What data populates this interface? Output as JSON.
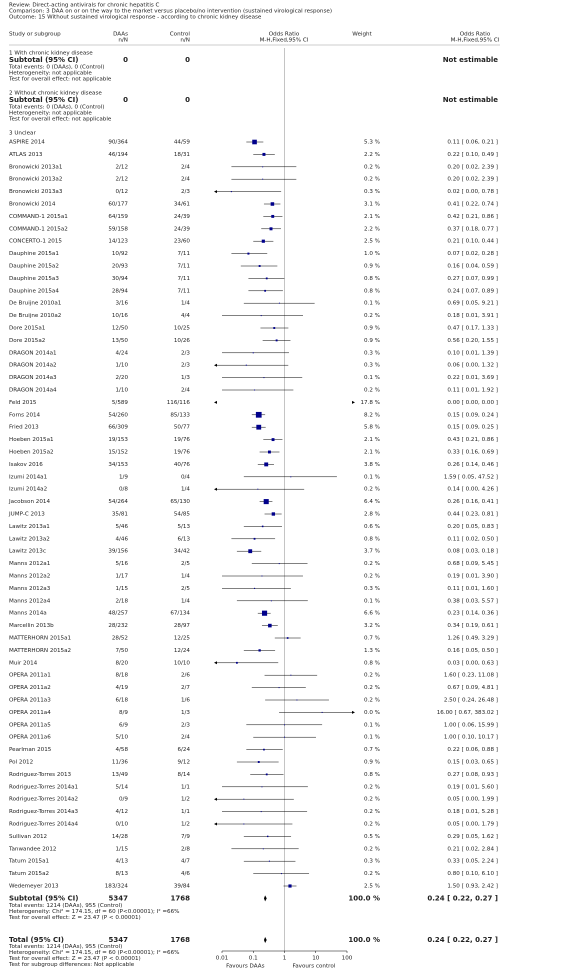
{
  "header": {
    "lines": [
      "Review:  Direct-acting antivirals for chronic hepatitis C",
      "Comparison:  3 DAA on or on the way to the market versus placebo/no intervention (sustained virological response)",
      "Outcome:  15 Without sustained virological response - according to chronic kidney disease"
    ]
  },
  "columns": {
    "study": "Study or subgroup",
    "daa": "DAAs",
    "daa_unit": "n/N",
    "ctl": "Control",
    "ctl_unit": "n/N",
    "plot": "Odds Ratio",
    "plot_method": "M-H,Fixed,95% CI",
    "weight": "Weight",
    "ci": "Odds Ratio",
    "ci_method": "M-H,Fixed,95% CI"
  },
  "subgroups": [
    {
      "title": "1 With chronic kidney disease",
      "subtotal": {
        "label": "Subtotal (95% CI)",
        "daa": 0,
        "ctl": 0,
        "ci": "Not estimable"
      },
      "notes": [
        "Total events: 0 (DAAs), 0 (Control)",
        "Heterogeneity: not applicable",
        "Test for overall effect: not applicable"
      ]
    },
    {
      "title": "2 Without chronic kidney disease",
      "subtotal": {
        "label": "Subtotal (95% CI)",
        "daa": 0,
        "ctl": 0,
        "ci": "Not estimable"
      },
      "notes": [
        "Total events: 0 (DAAs), 0 (Control)",
        "Heterogeneity: not applicable",
        "Test for overall effect: not applicable"
      ]
    },
    {
      "title": "3 Unclear",
      "studies": [
        {
          "study": "ASPIRE 2014",
          "daa": "90/364",
          "ctl": "44/59",
          "w": 5.3,
          "wl": "5.3 %",
          "or": 0.11,
          "lo": 0.06,
          "hi": 0.21,
          "ci": "0.11 [ 0.06, 0.21 ]"
        },
        {
          "study": "ATLAS 2013",
          "daa": "46/194",
          "ctl": "18/31",
          "w": 2.2,
          "wl": "2.2 %",
          "or": 0.22,
          "lo": 0.1,
          "hi": 0.49,
          "ci": "0.22 [ 0.10, 0.49 ]"
        },
        {
          "study": "Bronowicki 2013a1",
          "daa": "2/12",
          "ctl": "2/4",
          "w": 0.2,
          "wl": "0.2 %",
          "or": 0.2,
          "lo": 0.02,
          "hi": 2.39,
          "ci": "0.20 [ 0.02, 2.39 ]"
        },
        {
          "study": "Bronowicki 2013a2",
          "daa": "2/12",
          "ctl": "2/4",
          "w": 0.2,
          "wl": "0.2 %",
          "or": 0.2,
          "lo": 0.02,
          "hi": 2.39,
          "ci": "0.20 [ 0.02, 2.39 ]"
        },
        {
          "study": "Bronowicki 2013a3",
          "daa": "0/12",
          "ctl": "2/3",
          "w": 0.3,
          "wl": "0.3 %",
          "or": 0.02,
          "lo": 0.0,
          "hi": 0.78,
          "ci": "0.02 [ 0.00, 0.78 ]"
        },
        {
          "study": "Bronowicki 2014",
          "daa": "60/177",
          "ctl": "34/61",
          "w": 3.1,
          "wl": "3.1 %",
          "or": 0.41,
          "lo": 0.22,
          "hi": 0.74,
          "ci": "0.41 [ 0.22, 0.74 ]"
        },
        {
          "study": "COMMAND-1 2015a1",
          "daa": "64/159",
          "ctl": "24/39",
          "w": 2.1,
          "wl": "2.1 %",
          "or": 0.42,
          "lo": 0.21,
          "hi": 0.86,
          "ci": "0.42 [ 0.21, 0.86 ]"
        },
        {
          "study": "COMMAND-1 2015a2",
          "daa": "59/158",
          "ctl": "24/39",
          "w": 2.2,
          "wl": "2.2 %",
          "or": 0.37,
          "lo": 0.18,
          "hi": 0.77,
          "ci": "0.37 [ 0.18, 0.77 ]"
        },
        {
          "study": "CONCERTO-1 2015",
          "daa": "14/123",
          "ctl": "23/60",
          "w": 2.5,
          "wl": "2.5 %",
          "or": 0.21,
          "lo": 0.1,
          "hi": 0.44,
          "ci": "0.21 [ 0.10, 0.44 ]"
        },
        {
          "study": "Dauphine 2015a1",
          "daa": "10/92",
          "ctl": "7/11",
          "w": 1.0,
          "wl": "1.0 %",
          "or": 0.07,
          "lo": 0.02,
          "hi": 0.28,
          "ci": "0.07 [ 0.02, 0.28 ]"
        },
        {
          "study": "Dauphine 2015a2",
          "daa": "20/93",
          "ctl": "7/11",
          "w": 0.9,
          "wl": "0.9 %",
          "or": 0.16,
          "lo": 0.04,
          "hi": 0.59,
          "ci": "0.16 [ 0.04, 0.59 ]"
        },
        {
          "study": "Dauphine 2015a3",
          "daa": "30/94",
          "ctl": "7/11",
          "w": 0.8,
          "wl": "0.8 %",
          "or": 0.27,
          "lo": 0.07,
          "hi": 0.99,
          "ci": "0.27 [ 0.07, 0.99 ]"
        },
        {
          "study": "Dauphine 2015a4",
          "daa": "28/94",
          "ctl": "7/11",
          "w": 0.8,
          "wl": "0.8 %",
          "or": 0.24,
          "lo": 0.07,
          "hi": 0.89,
          "ci": "0.24 [ 0.07, 0.89 ]"
        },
        {
          "study": "De Bruijne 2010a1",
          "daa": "3/16",
          "ctl": "1/4",
          "w": 0.1,
          "wl": "0.1 %",
          "or": 0.69,
          "lo": 0.05,
          "hi": 9.21,
          "ci": "0.69 [ 0.05, 9.21 ]"
        },
        {
          "study": "De Bruijne 2010a2",
          "daa": "10/16",
          "ctl": "4/4",
          "w": 0.2,
          "wl": "0.2 %",
          "or": 0.18,
          "lo": 0.01,
          "hi": 3.91,
          "ci": "0.18 [ 0.01, 3.91 ]"
        },
        {
          "study": "Dore 2015a1",
          "daa": "12/50",
          "ctl": "10/25",
          "w": 0.9,
          "wl": "0.9 %",
          "or": 0.47,
          "lo": 0.17,
          "hi": 1.33,
          "ci": "0.47 [ 0.17, 1.33 ]"
        },
        {
          "study": "Dore 2015a2",
          "daa": "13/50",
          "ctl": "10/26",
          "w": 0.9,
          "wl": "0.9 %",
          "or": 0.56,
          "lo": 0.2,
          "hi": 1.55,
          "ci": "0.56 [ 0.20, 1.55 ]"
        },
        {
          "study": "DRAGON 2014a1",
          "daa": "4/24",
          "ctl": "2/3",
          "w": 0.3,
          "wl": "0.3 %",
          "or": 0.1,
          "lo": 0.01,
          "hi": 1.39,
          "ci": "0.10 [ 0.01, 1.39 ]"
        },
        {
          "study": "DRAGON 2014a2",
          "daa": "1/10",
          "ctl": "2/3",
          "w": 0.3,
          "wl": "0.3 %",
          "or": 0.06,
          "lo": 0.0,
          "hi": 1.32,
          "ci": "0.06 [ 0.00, 1.32 ]"
        },
        {
          "study": "DRAGON 2014a3",
          "daa": "2/20",
          "ctl": "1/3",
          "w": 0.1,
          "wl": "0.1 %",
          "or": 0.22,
          "lo": 0.01,
          "hi": 3.69,
          "ci": "0.22 [ 0.01, 3.69 ]"
        },
        {
          "study": "DRAGON 2014a4",
          "daa": "1/10",
          "ctl": "2/4",
          "w": 0.2,
          "wl": "0.2 %",
          "or": 0.11,
          "lo": 0.01,
          "hi": 1.92,
          "ci": "0.11 [ 0.01, 1.92 ]"
        },
        {
          "study": "Feld 2015",
          "daa": "5/589",
          "ctl": "116/116",
          "w": 17.8,
          "wl": "17.8 %",
          "or": 0.0,
          "lo": 0.0,
          "hi": 0.0,
          "ci": "0.00 [ 0.00, 0.00 ]"
        },
        {
          "study": "Forns 2014",
          "daa": "54/260",
          "ctl": "85/133",
          "w": 8.2,
          "wl": "8.2 %",
          "or": 0.15,
          "lo": 0.09,
          "hi": 0.24,
          "ci": "0.15 [ 0.09, 0.24 ]"
        },
        {
          "study": "Fried 2013",
          "daa": "66/309",
          "ctl": "50/77",
          "w": 5.8,
          "wl": "5.8 %",
          "or": 0.15,
          "lo": 0.09,
          "hi": 0.25,
          "ci": "0.15 [ 0.09, 0.25 ]"
        },
        {
          "study": "Hoeben 2015a1",
          "daa": "19/153",
          "ctl": "19/76",
          "w": 2.1,
          "wl": "2.1 %",
          "or": 0.43,
          "lo": 0.21,
          "hi": 0.86,
          "ci": "0.43 [ 0.21, 0.86 ]"
        },
        {
          "study": "Hoeben 2015a2",
          "daa": "15/152",
          "ctl": "19/76",
          "w": 2.1,
          "wl": "2.1 %",
          "or": 0.33,
          "lo": 0.16,
          "hi": 0.69,
          "ci": "0.33 [ 0.16, 0.69 ]"
        },
        {
          "study": "Isakov 2016",
          "daa": "34/153",
          "ctl": "40/76",
          "w": 3.8,
          "wl": "3.8 %",
          "or": 0.26,
          "lo": 0.14,
          "hi": 0.46,
          "ci": "0.26 [ 0.14, 0.46 ]"
        },
        {
          "study": "Izumi 2014a1",
          "daa": "1/9",
          "ctl": "0/4",
          "w": 0.1,
          "wl": "0.1 %",
          "or": 1.59,
          "lo": 0.05,
          "hi": 47.52,
          "ci": "1.59 [ 0.05, 47.52 ]"
        },
        {
          "study": "Izumi 2014a2",
          "daa": "0/8",
          "ctl": "1/4",
          "w": 0.2,
          "wl": "0.2 %",
          "or": 0.14,
          "lo": 0.0,
          "hi": 4.26,
          "ci": "0.14 [ 0.00, 4.26 ]"
        },
        {
          "study": "Jacobson 2014",
          "daa": "54/264",
          "ctl": "65/130",
          "w": 6.4,
          "wl": "6.4 %",
          "or": 0.26,
          "lo": 0.16,
          "hi": 0.41,
          "ci": "0.26 [ 0.16, 0.41 ]"
        },
        {
          "study": "JUMP-C 2013",
          "daa": "35/81",
          "ctl": "54/85",
          "w": 2.8,
          "wl": "2.8 %",
          "or": 0.44,
          "lo": 0.23,
          "hi": 0.81,
          "ci": "0.44 [ 0.23, 0.81 ]"
        },
        {
          "study": "Lawitz 2013a1",
          "daa": "5/46",
          "ctl": "5/13",
          "w": 0.6,
          "wl": "0.6 %",
          "or": 0.2,
          "lo": 0.05,
          "hi": 0.83,
          "ci": "0.20 [ 0.05, 0.83 ]"
        },
        {
          "study": "Lawitz 2013a2",
          "daa": "4/46",
          "ctl": "6/13",
          "w": 0.8,
          "wl": "0.8 %",
          "or": 0.11,
          "lo": 0.02,
          "hi": 0.5,
          "ci": "0.11 [ 0.02, 0.50 ]"
        },
        {
          "study": "Lawitz 2013c",
          "daa": "39/156",
          "ctl": "34/42",
          "w": 3.7,
          "wl": "3.7 %",
          "or": 0.08,
          "lo": 0.03,
          "hi": 0.18,
          "ci": "0.08 [ 0.03, 0.18 ]"
        },
        {
          "study": "Manns 2012a1",
          "daa": "5/16",
          "ctl": "2/5",
          "w": 0.2,
          "wl": "0.2 %",
          "or": 0.68,
          "lo": 0.09,
          "hi": 5.45,
          "ci": "0.68 [ 0.09, 5.45 ]"
        },
        {
          "study": "Manns 2012a2",
          "daa": "1/17",
          "ctl": "1/4",
          "w": 0.2,
          "wl": "0.2 %",
          "or": 0.19,
          "lo": 0.01,
          "hi": 3.9,
          "ci": "0.19 [ 0.01, 3.90 ]"
        },
        {
          "study": "Manns 2012a3",
          "daa": "1/15",
          "ctl": "2/5",
          "w": 0.3,
          "wl": "0.3 %",
          "or": 0.11,
          "lo": 0.01,
          "hi": 1.6,
          "ci": "0.11 [ 0.01, 1.60 ]"
        },
        {
          "study": "Manns 2012a4",
          "daa": "2/18",
          "ctl": "1/4",
          "w": 0.1,
          "wl": "0.1 %",
          "or": 0.38,
          "lo": 0.03,
          "hi": 5.57,
          "ci": "0.38 [ 0.03, 5.57 ]"
        },
        {
          "study": "Manns 2014a",
          "daa": "48/257",
          "ctl": "67/134",
          "w": 6.6,
          "wl": "6.6 %",
          "or": 0.23,
          "lo": 0.14,
          "hi": 0.36,
          "ci": "0.23 [ 0.14, 0.36 ]"
        },
        {
          "study": "Marcellin 2013b",
          "daa": "28/232",
          "ctl": "28/97",
          "w": 3.2,
          "wl": "3.2 %",
          "or": 0.34,
          "lo": 0.19,
          "hi": 0.61,
          "ci": "0.34 [ 0.19, 0.61 ]"
        },
        {
          "study": "MATTERHORN 2015a1",
          "daa": "28/52",
          "ctl": "12/25",
          "w": 0.7,
          "wl": "0.7 %",
          "or": 1.26,
          "lo": 0.49,
          "hi": 3.29,
          "ci": "1.26 [ 0.49, 3.29 ]"
        },
        {
          "study": "MATTERHORN 2015a2",
          "daa": "7/50",
          "ctl": "12/24",
          "w": 1.3,
          "wl": "1.3 %",
          "or": 0.16,
          "lo": 0.05,
          "hi": 0.5,
          "ci": "0.16 [ 0.05, 0.50 ]"
        },
        {
          "study": "Muir 2014",
          "daa": "8/20",
          "ctl": "10/10",
          "w": 0.8,
          "wl": "0.8 %",
          "or": 0.03,
          "lo": 0.0,
          "hi": 0.63,
          "ci": "0.03 [ 0.00, 0.63 ]"
        },
        {
          "study": "OPERA 2011a1",
          "daa": "8/18",
          "ctl": "2/6",
          "w": 0.2,
          "wl": "0.2 %",
          "or": 1.6,
          "lo": 0.23,
          "hi": 11.08,
          "ci": "1.60 [ 0.23, 11.08 ]"
        },
        {
          "study": "OPERA 2011a2",
          "daa": "4/19",
          "ctl": "2/7",
          "w": 0.2,
          "wl": "0.2 %",
          "or": 0.67,
          "lo": 0.09,
          "hi": 4.81,
          "ci": "0.67 [ 0.09, 4.81 ]"
        },
        {
          "study": "OPERA 2011a3",
          "daa": "6/18",
          "ctl": "1/6",
          "w": 0.2,
          "wl": "0.2 %",
          "or": 2.5,
          "lo": 0.24,
          "hi": 26.48,
          "ci": "2.50 [ 0.24, 26.48 ]"
        },
        {
          "study": "OPERA 2011a4",
          "daa": "8/9",
          "ctl": "1/3",
          "w": 0.0,
          "wl": "0.0 %",
          "or": 16.0,
          "lo": 0.67,
          "hi": 383.02,
          "ci": "16.00 [ 0.67, 383.02 ]"
        },
        {
          "study": "OPERA 2011a5",
          "daa": "6/9",
          "ctl": "2/3",
          "w": 0.1,
          "wl": "0.1 %",
          "or": 1.0,
          "lo": 0.06,
          "hi": 15.99,
          "ci": "1.00 [ 0.06, 15.99 ]"
        },
        {
          "study": "OPERA 2011a6",
          "daa": "5/10",
          "ctl": "2/4",
          "w": 0.1,
          "wl": "0.1 %",
          "or": 1.0,
          "lo": 0.1,
          "hi": 10.17,
          "ci": "1.00 [ 0.10, 10.17 ]"
        },
        {
          "study": "Pearlman 2015",
          "daa": "4/58",
          "ctl": "6/24",
          "w": 0.7,
          "wl": "0.7 %",
          "or": 0.22,
          "lo": 0.06,
          "hi": 0.88,
          "ci": "0.22 [ 0.06, 0.88 ]"
        },
        {
          "study": "Pol 2012",
          "daa": "11/36",
          "ctl": "9/12",
          "w": 0.9,
          "wl": "0.9 %",
          "or": 0.15,
          "lo": 0.03,
          "hi": 0.65,
          "ci": "0.15 [ 0.03, 0.65 ]"
        },
        {
          "study": "Rodriguez-Torres 2013",
          "daa": "13/49",
          "ctl": "8/14",
          "w": 0.8,
          "wl": "0.8 %",
          "or": 0.27,
          "lo": 0.08,
          "hi": 0.93,
          "ci": "0.27 [ 0.08, 0.93 ]"
        },
        {
          "study": "Rodriguez-Torres 2014a1",
          "daa": "5/14",
          "ctl": "1/1",
          "w": 0.2,
          "wl": "0.2 %",
          "or": 0.19,
          "lo": 0.01,
          "hi": 5.6,
          "ci": "0.19 [ 0.01, 5.60 ]"
        },
        {
          "study": "Rodriguez-Torres 2014a2",
          "daa": "0/9",
          "ctl": "1/2",
          "w": 0.2,
          "wl": "0.2 %",
          "or": 0.05,
          "lo": 0.0,
          "hi": 1.99,
          "ci": "0.05 [ 0.00, 1.99 ]"
        },
        {
          "study": "Rodriguez-Torres 2014a3",
          "daa": "4/12",
          "ctl": "1/1",
          "w": 0.2,
          "wl": "0.2 %",
          "or": 0.18,
          "lo": 0.01,
          "hi": 5.28,
          "ci": "0.18 [ 0.01, 5.28 ]"
        },
        {
          "study": "Rodriguez-Torres 2014a4",
          "daa": "0/10",
          "ctl": "1/2",
          "w": 0.2,
          "wl": "0.2 %",
          "or": 0.05,
          "lo": 0.0,
          "hi": 1.79,
          "ci": "0.05 [ 0.00, 1.79 ]"
        },
        {
          "study": "Sullivan 2012",
          "daa": "14/28",
          "ctl": "7/9",
          "w": 0.5,
          "wl": "0.5 %",
          "or": 0.29,
          "lo": 0.05,
          "hi": 1.62,
          "ci": "0.29 [ 0.05, 1.62 ]"
        },
        {
          "study": "Tanwandee 2012",
          "daa": "1/15",
          "ctl": "2/8",
          "w": 0.2,
          "wl": "0.2 %",
          "or": 0.21,
          "lo": 0.02,
          "hi": 2.84,
          "ci": "0.21 [ 0.02, 2.84 ]"
        },
        {
          "study": "Tatum 2015a1",
          "daa": "4/13",
          "ctl": "4/7",
          "w": 0.3,
          "wl": "0.3 %",
          "or": 0.33,
          "lo": 0.05,
          "hi": 2.24,
          "ci": "0.33 [ 0.05, 2.24 ]"
        },
        {
          "study": "Tatum 2015a2",
          "daa": "8/13",
          "ctl": "4/6",
          "w": 0.2,
          "wl": "0.2 %",
          "or": 0.8,
          "lo": 0.1,
          "hi": 6.1,
          "ci": "0.80 [ 0.10, 6.10 ]"
        },
        {
          "study": "Wedemeyer 2013",
          "daa": "183/324",
          "ctl": "39/84",
          "w": 2.5,
          "wl": "2.5 %",
          "or": 1.5,
          "lo": 0.93,
          "hi": 2.42,
          "ci": "1.50 [ 0.93, 2.42 ]"
        }
      ],
      "subtotal": {
        "label": "Subtotal (95% CI)",
        "daa": 5347,
        "ctl": 1768,
        "wl": "100.0 %",
        "or": 0.24,
        "lo": 0.22,
        "hi": 0.27,
        "ci": "0.24 [ 0.22, 0.27 ]"
      },
      "notes": [
        "Total events: 1214 (DAAs), 955 (Control)",
        "Heterogeneity: Chi² = 174.15, df = 60 (P<0.00001); I² =66%",
        "Test for overall effect: Z = 23.47 (P < 0.00001)"
      ]
    }
  ],
  "total": {
    "label": "Total (95% CI)",
    "daa": 5347,
    "ctl": 1768,
    "wl": "100.0 %",
    "or": 0.24,
    "lo": 0.22,
    "hi": 0.27,
    "ci": "0.24 [ 0.22, 0.27 ]",
    "notes": [
      "Total events: 1214 (DAAs), 955 (Control)",
      "Heterogeneity: Chi² = 174.15, df = 60 (P<0.00001); I² =66%",
      "Test for overall effect: Z = 23.47 (P < 0.00001)",
      "Test for subgroup differences: Not applicable"
    ]
  },
  "axis": {
    "xlim": [
      0.01,
      100
    ],
    "xticks": [
      0.01,
      0.1,
      1,
      10,
      100
    ],
    "log": true,
    "left_label": "Favours DAAs",
    "right_label": "Favours control",
    "square_color": "#00008b"
  }
}
